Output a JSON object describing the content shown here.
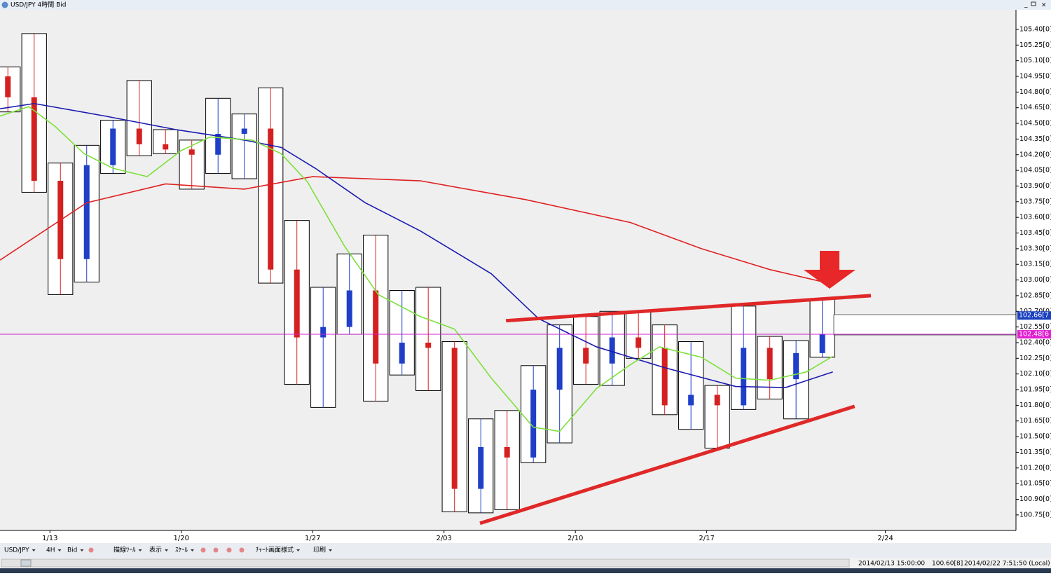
{
  "window_title": "USD/JPY 4時間 Bid",
  "toolbar": [
    "USD/JPY",
    "4H",
    "Bid",
    "描線ﾂｰﾙ",
    "表示",
    "ｽｹｰﾙ",
    "ﾁｬｰﾄ画面様式",
    "印刷"
  ],
  "status": [
    "2014/02/13 15:00:00",
    "100.60[8]",
    "2014/02/22 7:51:50 (Local)"
  ],
  "chart_data": {
    "type": "candlestick",
    "x": [
      0,
      1,
      2,
      3,
      4,
      5,
      6,
      7,
      8,
      9,
      10,
      11,
      12,
      13,
      14,
      15,
      16,
      17,
      18,
      19,
      20,
      21,
      22,
      23,
      24,
      25,
      26,
      27,
      28,
      29,
      30,
      31
    ],
    "open": [
      104.95,
      104.75,
      103.95,
      103.2,
      104.1,
      104.45,
      104.3,
      104.25,
      104.2,
      104.4,
      104.45,
      103.1,
      102.45,
      102.55,
      102.9,
      102.2,
      102.4,
      102.35,
      101.0,
      101.4,
      101.3,
      101.95,
      102.35,
      102.2,
      102.45,
      102.35,
      101.8,
      101.9,
      101.8,
      102.35,
      102.05,
      102.3
    ],
    "high": [
      105.04,
      105.36,
      104.12,
      104.29,
      104.53,
      104.91,
      104.44,
      104.34,
      104.74,
      104.59,
      104.84,
      103.57,
      102.93,
      103.25,
      103.43,
      102.9,
      102.93,
      102.41,
      101.67,
      101.75,
      102.18,
      102.57,
      102.65,
      102.7,
      102.7,
      102.57,
      102.41,
      101.99,
      102.75,
      102.46,
      102.42,
      102.82
    ],
    "low": [
      104.61,
      103.84,
      102.86,
      102.98,
      104.02,
      104.19,
      104.21,
      103.87,
      104.02,
      103.97,
      102.97,
      102.0,
      101.78,
      102.48,
      101.84,
      102.09,
      101.94,
      100.78,
      100.77,
      100.8,
      101.25,
      101.44,
      102.0,
      101.99,
      102.25,
      101.71,
      101.57,
      101.39,
      101.76,
      101.86,
      101.67,
      102.26
    ],
    "close": [
      104.75,
      103.95,
      103.2,
      104.1,
      104.45,
      104.3,
      104.25,
      104.2,
      104.4,
      104.45,
      103.1,
      102.45,
      102.55,
      102.9,
      102.2,
      102.4,
      102.35,
      101.0,
      101.4,
      101.3,
      101.95,
      102.35,
      102.2,
      102.45,
      102.35,
      101.8,
      101.9,
      101.8,
      102.35,
      102.05,
      102.3,
      102.48
    ],
    "up_color": "#1f3fc8",
    "down_color": "#d42020",
    "box_color": "#000000",
    "series": [
      {
        "color": "#e02020",
        "x": [
          -0.3,
          3,
          6,
          9,
          11.6,
          15.7,
          19.7,
          23.7,
          26.4,
          29,
          31.4
        ],
        "values": [
          103.19,
          103.74,
          103.92,
          103.87,
          103.99,
          103.95,
          103.77,
          103.55,
          103.3,
          103.1,
          102.96
        ]
      },
      {
        "color": "#1a1ab0",
        "x": [
          -0.3,
          1,
          3.7,
          6.4,
          9,
          10.4,
          11.7,
          13.6,
          15.7,
          18.4,
          20.2,
          22.4,
          25,
          27.7,
          29.6,
          31.4
        ],
        "values": [
          104.64,
          104.69,
          104.57,
          104.44,
          104.34,
          104.27,
          104.07,
          103.74,
          103.47,
          103.06,
          102.63,
          102.36,
          102.16,
          101.98,
          101.97,
          102.12
        ]
      },
      {
        "color": "#7de03a",
        "x": [
          -0.3,
          0.8,
          1.8,
          2.9,
          4,
          5.3,
          6.6,
          7.7,
          9.3,
          10.4,
          11.4,
          12.8,
          14.1,
          15.7,
          17,
          18.4,
          20,
          21,
          22.4,
          23.7,
          24.8,
          26.4,
          27.7,
          29,
          30.4,
          31.4
        ],
        "values": [
          104.57,
          104.66,
          104.47,
          104.21,
          104.07,
          103.99,
          104.24,
          104.37,
          104.34,
          104.21,
          103.94,
          103.33,
          102.86,
          102.65,
          102.53,
          102.06,
          101.59,
          101.55,
          101.96,
          102.19,
          102.36,
          102.26,
          102.06,
          102.04,
          102.12,
          102.27
        ]
      }
    ],
    "trendlines": [
      {
        "color": "#e02828",
        "x": [
          18.96,
          32.85
        ],
        "values": [
          102.61,
          102.85
        ]
      },
      {
        "color": "#e02828",
        "x": [
          17.97,
          32.23
        ],
        "values": [
          100.67,
          101.79
        ]
      }
    ],
    "hline": {
      "value": 102.48,
      "color": "#d020d0"
    },
    "price_labels": [
      {
        "value": 102.66,
        "label": "102.66[7",
        "color": "#1a3fbf"
      },
      {
        "value": 102.48,
        "label": "102.48[6",
        "color": "#e020d0"
      }
    ],
    "xlim": [
      -0.3,
      38.37
    ],
    "ylim": [
      100.6,
      105.55
    ],
    "xticks": [
      {
        "value": 1.6,
        "label": "1/13"
      },
      {
        "value": 6.6,
        "label": "1/20"
      },
      {
        "value": 11.6,
        "label": "1/27"
      },
      {
        "value": 16.6,
        "label": "2/03"
      },
      {
        "value": 21.6,
        "label": "2/10"
      },
      {
        "value": 26.6,
        "label": "2/17"
      },
      {
        "value": 33.4,
        "label": "2/24"
      }
    ],
    "yticks": [
      {
        "value": 105.4,
        "label": "105.40[0]"
      },
      {
        "value": 105.25,
        "label": "105.25[0]"
      },
      {
        "value": 105.1,
        "label": "105.10[0]"
      },
      {
        "value": 104.95,
        "label": "104.95[0]"
      },
      {
        "value": 104.8,
        "label": "104.80[0]"
      },
      {
        "value": 104.65,
        "label": "104.65[0]"
      },
      {
        "value": 104.5,
        "label": "104.50[0]"
      },
      {
        "value": 104.35,
        "label": "104.35[0]"
      },
      {
        "value": 104.2,
        "label": "104.20[0]"
      },
      {
        "value": 104.05,
        "label": "104.05[0]"
      },
      {
        "value": 103.9,
        "label": "103.90[0]"
      },
      {
        "value": 103.75,
        "label": "103.75[0]"
      },
      {
        "value": 103.6,
        "label": "103.60[0]"
      },
      {
        "value": 103.45,
        "label": "103.45[0]"
      },
      {
        "value": 103.3,
        "label": "103.30[0]"
      },
      {
        "value": 103.15,
        "label": "103.15[0]"
      },
      {
        "value": 103.0,
        "label": "103.00[0]"
      },
      {
        "value": 102.85,
        "label": "102.85[0]"
      },
      {
        "value": 102.7,
        "label": "102.70[0]"
      },
      {
        "value": 102.55,
        "label": "102.55[0]"
      },
      {
        "value": 102.4,
        "label": "102.40[0]"
      },
      {
        "value": 102.25,
        "label": "102.25[0]"
      },
      {
        "value": 102.1,
        "label": "102.10[0]"
      },
      {
        "value": 101.95,
        "label": "101.95[0]"
      },
      {
        "value": 101.8,
        "label": "101.80[0]"
      },
      {
        "value": 101.65,
        "label": "101.65[0]"
      },
      {
        "value": 101.5,
        "label": "101.50[0]"
      },
      {
        "value": 101.35,
        "label": "101.35[0]"
      },
      {
        "value": 101.2,
        "label": "101.20[0]"
      },
      {
        "value": 101.05,
        "label": "101.05[0]"
      },
      {
        "value": 100.9,
        "label": "100.90[0]"
      },
      {
        "value": 100.75,
        "label": "100.75[0]"
      }
    ]
  }
}
